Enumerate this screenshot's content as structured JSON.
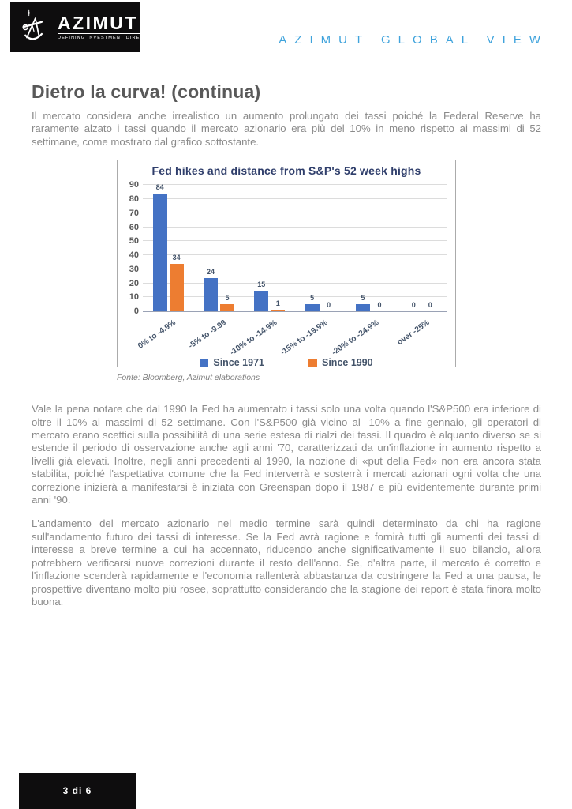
{
  "header": {
    "logo": {
      "brand": "AZIMUT",
      "tagline": "DEFINING INVESTMENT DIRECTION",
      "icon": "sextant-icon"
    },
    "masthead": "A Z I M U T   G L O B A L   V I E W",
    "masthead_plain": "AZIMUT GLOBAL VIEW"
  },
  "article": {
    "title": "Dietro la curva! (continua)",
    "paragraphs": [
      "Il mercato considera anche irrealistico un aumento prolungato dei tassi poiché la Federal Reserve ha raramente alzato i tassi quando il mercato azionario era più del 10% in meno rispetto ai massimi di 52 settimane, come mostrato dal grafico sottostante.",
      "Vale la pena notare che dal 1990 la Fed ha aumentato i tassi solo una volta quando l'S&P500 era inferiore di oltre il 10% ai massimi di 52 settimane. Con l'S&P500 già vicino al -10% a fine gennaio, gli operatori di mercato erano scettici sulla possibilità di una serie estesa di rialzi dei tassi. Il quadro è alquanto diverso se si estende il periodo di osservazione anche agli anni '70, caratterizzati da un'inflazione in aumento rispetto a livelli già elevati. Inoltre, negli anni precedenti al 1990, la nozione di «put della Fed» non era ancora stata stabilita, poiché l'aspettativa comune che la Fed interverrà e sosterrà i mercati azionari ogni volta che una correzione inizierà a manifestarsi è iniziata con Greenspan dopo il 1987 e più evidentemente durante primi anni '90.",
      "L'andamento del mercato azionario nel medio termine sarà quindi determinato da chi ha ragione sull'andamento futuro dei tassi di interesse. Se la Fed avrà ragione e fornirà tutti gli aumenti dei tassi di interesse a breve termine a cui ha accennato, riducendo anche significativamente il suo bilancio, allora potrebbero verificarsi nuove correzioni durante il resto dell'anno. Se, d'altra parte, il mercato è corretto e l'inflazione scenderà rapidamente e l'economia rallenterà abbastanza da costringere la Fed a una pausa, le prospettive diventano molto più rosee, soprattutto considerando che la stagione dei report è stata finora molto buona."
    ]
  },
  "chart_caption": "Fonte: Bloomberg, Azimut elaborations",
  "chart_data": {
    "type": "bar",
    "title": "Fed hikes and distance from S&P's 52 week highs",
    "categories": [
      "0% to -4.9%",
      "-5% to -9.99",
      "-10% to -14.9%",
      "-15% to -19.9%",
      "-20% to -24.9%",
      "over -25%"
    ],
    "series": [
      {
        "name": "Since 1971",
        "color": "#4472C4",
        "values": [
          84,
          24,
          15,
          5,
          5,
          0
        ]
      },
      {
        "name": "Since 1990",
        "color": "#ED7D31",
        "values": [
          34,
          5,
          1,
          0,
          0,
          0
        ]
      }
    ],
    "ylim": [
      0,
      90
    ],
    "yticks": [
      0,
      10,
      20,
      30,
      40,
      50,
      60,
      70,
      80,
      90
    ],
    "grid": true,
    "data_labels": true,
    "legend_position": "bottom",
    "xlabel": "",
    "ylabel": ""
  },
  "footer": {
    "page_indicator": "3 di 6"
  },
  "colors": {
    "masthead_blue": "#3FA3DC",
    "title_gray": "#595959",
    "body_gray": "#8A8A8A",
    "chart_navy": "#2F3E6B",
    "axis_navy": "#44546A",
    "series_blue": "#4472C4",
    "series_orange": "#ED7D31",
    "logo_black": "#0E0D0E"
  }
}
